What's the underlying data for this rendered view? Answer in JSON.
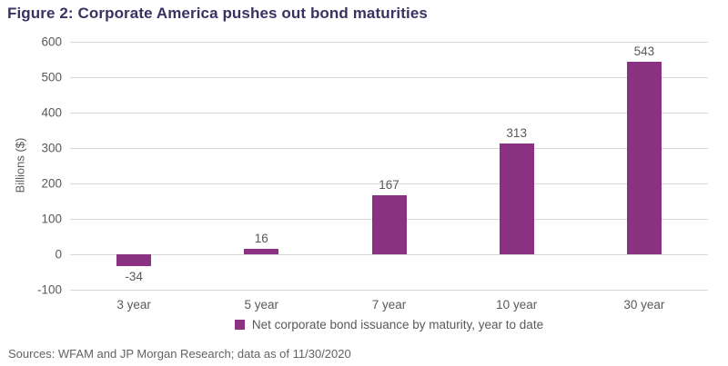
{
  "title": "Figure 2: Corporate America pushes out bond maturities",
  "legend_label": "Net corporate bond issuance by maturity, year to date",
  "source_note": "Sources: WFAM and JP Morgan Research; data as of 11/30/2020",
  "colors": {
    "title_text": "#3b3163",
    "bar": "#8a3182",
    "axis_text": "#595959",
    "gridline": "#d9d9d9",
    "background": "#ffffff"
  },
  "chart_data": {
    "type": "bar",
    "categories": [
      "3 year",
      "5 year",
      "7 year",
      "10 year",
      "30 year"
    ],
    "values": [
      -34,
      16,
      167,
      313,
      543
    ],
    "title": "Figure 2: Corporate America pushes out bond maturities",
    "xlabel": "",
    "ylabel": "Billions ($)",
    "ylim": [
      -100,
      600
    ],
    "ytick_step": 100,
    "grid": true,
    "data_labels": true,
    "bar_color": "#8a3182",
    "legend_position": "bottom",
    "legend_entries": [
      "Net corporate bond issuance by maturity, year to date"
    ]
  }
}
